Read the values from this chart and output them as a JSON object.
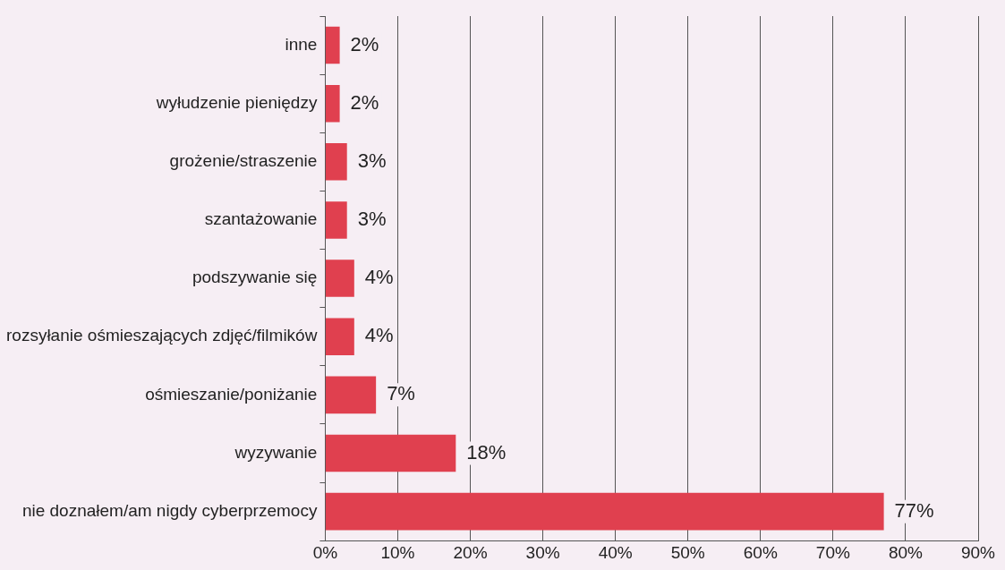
{
  "chart_data": {
    "type": "bar",
    "orientation": "horizontal",
    "categories": [
      "inne",
      "wyłudzenie pieniędzy",
      "grożenie/straszenie",
      "szantażowanie",
      "podszywanie się",
      "rozsyłanie ośmieszających zdjęć/filmików",
      "ośmieszanie/poniżanie",
      "wyzywanie",
      "nie doznałem/am nigdy cyberprzemocy"
    ],
    "values": [
      2,
      2,
      3,
      3,
      4,
      4,
      7,
      18,
      77
    ],
    "value_labels": [
      "2%",
      "2%",
      "3%",
      "3%",
      "4%",
      "4%",
      "7%",
      "18%",
      "77%"
    ],
    "color": "#e0404f",
    "xlim": [
      0,
      90
    ],
    "xticks": [
      {
        "value": 0,
        "label": "0%"
      },
      {
        "value": 10,
        "label": "10%"
      },
      {
        "value": 20,
        "label": "20%"
      },
      {
        "value": 30,
        "label": "30%"
      },
      {
        "value": 40,
        "label": "40%"
      },
      {
        "value": 50,
        "label": "50%"
      },
      {
        "value": 60,
        "label": "60%"
      },
      {
        "value": 70,
        "label": "70%"
      },
      {
        "value": 80,
        "label": "80%"
      },
      {
        "value": 90,
        "label": "90%"
      }
    ],
    "grid": "x",
    "legend": false
  }
}
